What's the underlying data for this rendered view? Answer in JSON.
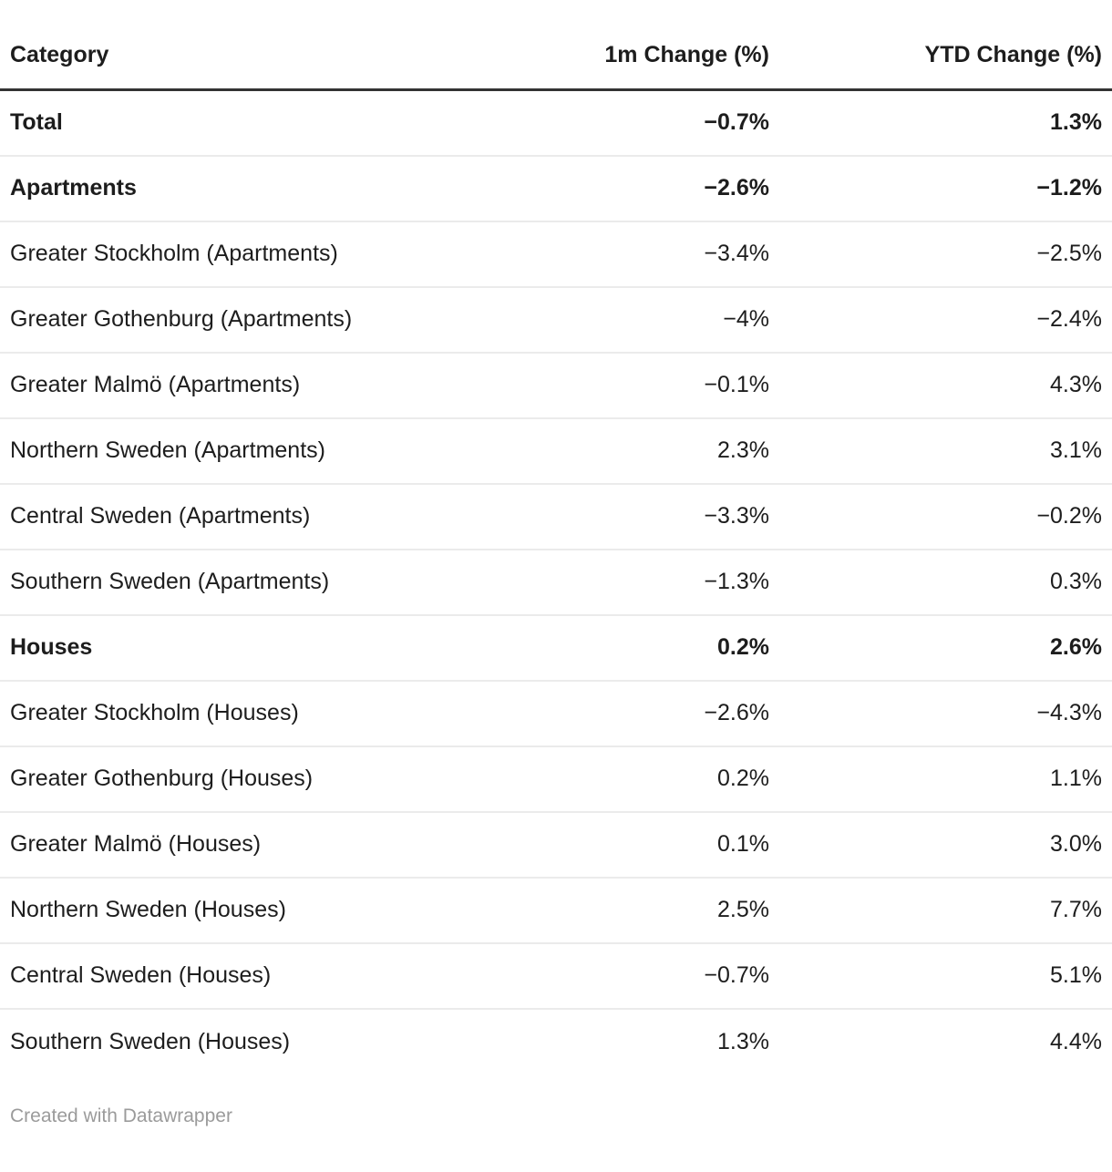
{
  "chart_data": {
    "type": "table",
    "columns": [
      "Category",
      "1m Change (%)",
      "YTD Change (%)"
    ],
    "rows": [
      {
        "category": "Total",
        "m1_change": "−0.7%",
        "ytd_change": "1.3%",
        "bold": true
      },
      {
        "category": "Apartments",
        "m1_change": "−2.6%",
        "ytd_change": "−1.2%",
        "bold": true
      },
      {
        "category": "Greater Stockholm (Apartments)",
        "m1_change": "−3.4%",
        "ytd_change": "−2.5%",
        "bold": false
      },
      {
        "category": "Greater Gothenburg (Apartments)",
        "m1_change": "−4%",
        "ytd_change": "−2.4%",
        "bold": false
      },
      {
        "category": "Greater Malmö (Apartments)",
        "m1_change": "−0.1%",
        "ytd_change": "4.3%",
        "bold": false
      },
      {
        "category": "Northern Sweden (Apartments)",
        "m1_change": "2.3%",
        "ytd_change": "3.1%",
        "bold": false
      },
      {
        "category": "Central Sweden (Apartments)",
        "m1_change": "−3.3%",
        "ytd_change": "−0.2%",
        "bold": false
      },
      {
        "category": "Southern Sweden (Apartments)",
        "m1_change": "−1.3%",
        "ytd_change": "0.3%",
        "bold": false
      },
      {
        "category": "Houses",
        "m1_change": "0.2%",
        "ytd_change": "2.6%",
        "bold": true
      },
      {
        "category": "Greater Stockholm (Houses)",
        "m1_change": "−2.6%",
        "ytd_change": "−4.3%",
        "bold": false
      },
      {
        "category": "Greater Gothenburg (Houses)",
        "m1_change": "0.2%",
        "ytd_change": "1.1%",
        "bold": false
      },
      {
        "category": "Greater Malmö (Houses)",
        "m1_change": "0.1%",
        "ytd_change": "3.0%",
        "bold": false
      },
      {
        "category": "Northern Sweden (Houses)",
        "m1_change": "2.5%",
        "ytd_change": "7.7%",
        "bold": false
      },
      {
        "category": "Central Sweden (Houses)",
        "m1_change": "−0.7%",
        "ytd_change": "5.1%",
        "bold": false
      },
      {
        "category": "Southern Sweden (Houses)",
        "m1_change": "1.3%",
        "ytd_change": "4.4%",
        "bold": false
      }
    ]
  },
  "footer": {
    "credit": "Created with Datawrapper"
  },
  "colors": {
    "background": "#ffffff",
    "text": "#1d1d1d",
    "header_border": "#333333",
    "row_divider": "#ebebeb",
    "credit_text": "#9b9b9b"
  }
}
